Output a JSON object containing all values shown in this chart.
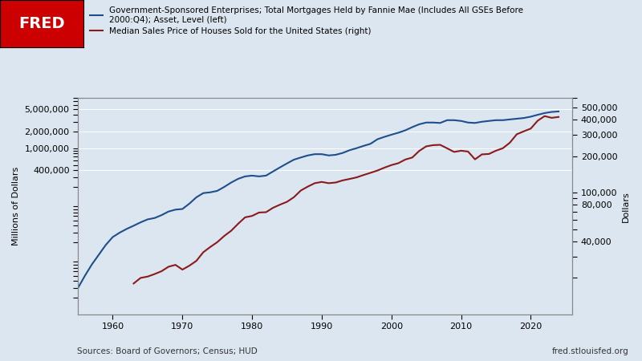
{
  "title": "",
  "background_color": "#dce6f0",
  "plot_bg_color": "#dce6f0",
  "left_label": "Millions of Dollars",
  "right_label": "Dollars",
  "source_text": "Sources: Board of Governors; Census; HUD",
  "fred_text": "fred.stlouisfed.org",
  "legend_line1": "Government-Sponsored Enterprises; Total Mortgages Held by Fannie Mae (Includes All GSEs Before\n2000:Q4); Asset, Level (left)",
  "legend_line2": "Median Sales Price of Houses Sold for the United States (right)",
  "line1_color": "#1f4e8c",
  "line2_color": "#8b1a1a",
  "xlim": [
    1955,
    2026
  ],
  "left_ylim": [
    1000,
    8000000
  ],
  "right_ylim": [
    10000,
    600000
  ],
  "left_yticks": [
    400000,
    1000000,
    2000000,
    5000000
  ],
  "left_ytick_labels": [
    "400,000",
    "1,000,000",
    "2,000,000",
    "5,000,000"
  ],
  "right_yticks": [
    40000,
    80000,
    100000,
    200000,
    300000,
    400000,
    500000
  ],
  "right_ytick_labels": [
    "40,000",
    "80,000",
    "100,000",
    "200,000",
    "300,000",
    "400,000",
    "500,000"
  ],
  "xticks": [
    1960,
    1970,
    1980,
    1990,
    2000,
    2010,
    2020
  ],
  "gse_years": [
    1955,
    1956,
    1957,
    1958,
    1959,
    1960,
    1961,
    1962,
    1963,
    1964,
    1965,
    1966,
    1967,
    1968,
    1969,
    1970,
    1971,
    1972,
    1973,
    1974,
    1975,
    1976,
    1977,
    1978,
    1979,
    1980,
    1981,
    1982,
    1983,
    1984,
    1985,
    1986,
    1987,
    1988,
    1989,
    1990,
    1991,
    1992,
    1993,
    1994,
    1995,
    1996,
    1997,
    1998,
    1999,
    2000,
    2001,
    2002,
    2003,
    2004,
    2005,
    2006,
    2007,
    2008,
    2009,
    2010,
    2011,
    2012,
    2013,
    2014,
    2015,
    2016,
    2017,
    2018,
    2019,
    2020,
    2021,
    2022,
    2023,
    2024
  ],
  "gse_values": [
    3000,
    5000,
    8000,
    12000,
    18000,
    25000,
    30000,
    35000,
    40000,
    46000,
    52000,
    55000,
    62000,
    72000,
    78000,
    80000,
    100000,
    130000,
    155000,
    160000,
    170000,
    200000,
    240000,
    280000,
    310000,
    320000,
    310000,
    320000,
    380000,
    450000,
    530000,
    620000,
    680000,
    740000,
    780000,
    780000,
    740000,
    760000,
    820000,
    920000,
    1000000,
    1100000,
    1200000,
    1450000,
    1600000,
    1750000,
    1900000,
    2100000,
    2400000,
    2700000,
    2900000,
    2900000,
    2850000,
    3200000,
    3200000,
    3100000,
    2900000,
    2850000,
    3000000,
    3100000,
    3200000,
    3200000,
    3300000,
    3400000,
    3500000,
    3700000,
    4000000,
    4300000,
    4500000,
    4600000
  ],
  "house_years": [
    1963,
    1964,
    1965,
    1966,
    1967,
    1968,
    1969,
    1970,
    1971,
    1972,
    1973,
    1974,
    1975,
    1976,
    1977,
    1978,
    1979,
    1980,
    1981,
    1982,
    1983,
    1984,
    1985,
    1986,
    1987,
    1988,
    1989,
    1990,
    1991,
    1992,
    1993,
    1994,
    1995,
    1996,
    1997,
    1998,
    1999,
    2000,
    2001,
    2002,
    2003,
    2004,
    2005,
    2006,
    2007,
    2008,
    2009,
    2010,
    2011,
    2012,
    2013,
    2014,
    2015,
    2016,
    2017,
    2018,
    2019,
    2020,
    2021,
    2022,
    2023,
    2024
  ],
  "house_values": [
    18000,
    20000,
    20500,
    21500,
    22700,
    24700,
    25600,
    23400,
    25200,
    27600,
    32500,
    35900,
    39300,
    44200,
    48800,
    55700,
    62900,
    64600,
    68900,
    69300,
    75300,
    79900,
    84300,
    92000,
    104500,
    112500,
    120000,
    122900,
    120000,
    121500,
    126500,
    130000,
    133900,
    140000,
    146000,
    152500,
    161000,
    169000,
    175200,
    187700,
    195000,
    221000,
    240900,
    246500,
    247900,
    232100,
    216700,
    221800,
    218400,
    188400,
    207000,
    208500,
    221800,
    232500,
    258000,
    302800,
    320000,
    336900,
    391200,
    427000,
    413000,
    420000
  ]
}
